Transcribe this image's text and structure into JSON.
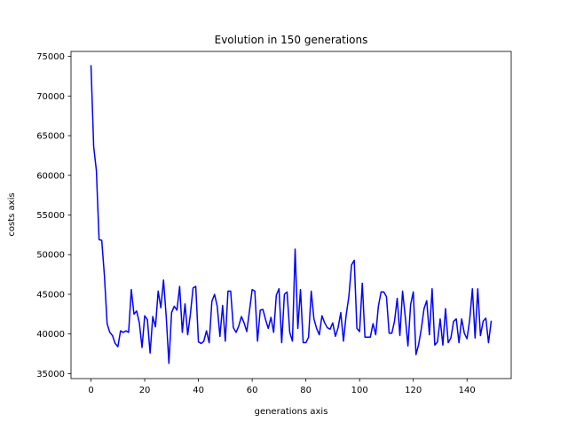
{
  "chart_data": {
    "type": "line",
    "title": "Evolution in 150 generations",
    "xlabel": "generations axis",
    "ylabel": "costs axis",
    "xlim": [
      -7.45,
      156.45
    ],
    "ylim": [
      34380,
      75620
    ],
    "xticks": [
      0,
      20,
      40,
      60,
      80,
      100,
      120,
      140
    ],
    "yticks": [
      35000,
      40000,
      45000,
      50000,
      55000,
      60000,
      65000,
      70000,
      75000
    ],
    "grid": false,
    "legend": null,
    "series": [
      {
        "color": "#0000ff",
        "x": [
          0,
          1,
          2,
          3,
          4,
          5,
          6,
          7,
          8,
          9,
          10,
          11,
          12,
          13,
          14,
          15,
          16,
          17,
          18,
          19,
          20,
          21,
          22,
          23,
          24,
          25,
          26,
          27,
          28,
          29,
          30,
          31,
          32,
          33,
          34,
          35,
          36,
          37,
          38,
          39,
          40,
          41,
          42,
          43,
          44,
          45,
          46,
          47,
          48,
          49,
          50,
          51,
          52,
          53,
          54,
          55,
          56,
          57,
          58,
          59,
          60,
          61,
          62,
          63,
          64,
          65,
          66,
          67,
          68,
          69,
          70,
          71,
          72,
          73,
          74,
          75,
          76,
          77,
          78,
          79,
          80,
          81,
          82,
          83,
          84,
          85,
          86,
          87,
          88,
          89,
          90,
          91,
          92,
          93,
          94,
          95,
          96,
          97,
          98,
          99,
          100,
          101,
          102,
          103,
          104,
          105,
          106,
          107,
          108,
          109,
          110,
          111,
          112,
          113,
          114,
          115,
          116,
          117,
          118,
          119,
          120,
          121,
          122,
          123,
          124,
          125,
          126,
          127,
          128,
          129,
          130,
          131,
          132,
          133,
          134,
          135,
          136,
          137,
          138,
          139,
          140,
          141,
          142,
          143,
          144,
          145,
          146,
          147,
          148,
          149
        ],
        "y": [
          73800,
          63600,
          60600,
          51900,
          51800,
          47300,
          41300,
          40200,
          39800,
          38800,
          38400,
          40400,
          40200,
          40400,
          40200,
          45600,
          42500,
          42900,
          41400,
          38300,
          42300,
          41800,
          37600,
          42200,
          40900,
          45400,
          43300,
          46800,
          42200,
          36300,
          42700,
          43500,
          43000,
          46000,
          40200,
          43800,
          39900,
          42500,
          45800,
          46000,
          39000,
          38800,
          39100,
          40400,
          38900,
          44100,
          45000,
          43500,
          39700,
          43600,
          39100,
          45400,
          45400,
          40800,
          40200,
          41000,
          42200,
          41400,
          40300,
          42900,
          45600,
          45400,
          39100,
          43000,
          43100,
          41800,
          40700,
          42100,
          40200,
          44900,
          45700,
          38900,
          45000,
          45300,
          40200,
          39100,
          50700,
          40700,
          45600,
          38900,
          38900,
          39600,
          45400,
          41900,
          40700,
          39900,
          42300,
          41400,
          40800,
          40600,
          41400,
          39700,
          40800,
          42700,
          39100,
          42400,
          44700,
          48700,
          49300,
          40700,
          40300,
          46400,
          39600,
          39600,
          39600,
          41300,
          39900,
          43500,
          45300,
          45300,
          44700,
          40100,
          40100,
          41600,
          44500,
          39800,
          45400,
          42200,
          38500,
          43700,
          45300,
          37400,
          38700,
          40700,
          43200,
          44200,
          39900,
          45700,
          38600,
          39000,
          41900,
          38600,
          43200,
          38900,
          39500,
          41600,
          41900,
          38900,
          41900,
          40100,
          39400,
          41800,
          45700,
          39500,
          45700,
          39800,
          41600,
          42000,
          38900,
          41600
        ]
      }
    ]
  }
}
